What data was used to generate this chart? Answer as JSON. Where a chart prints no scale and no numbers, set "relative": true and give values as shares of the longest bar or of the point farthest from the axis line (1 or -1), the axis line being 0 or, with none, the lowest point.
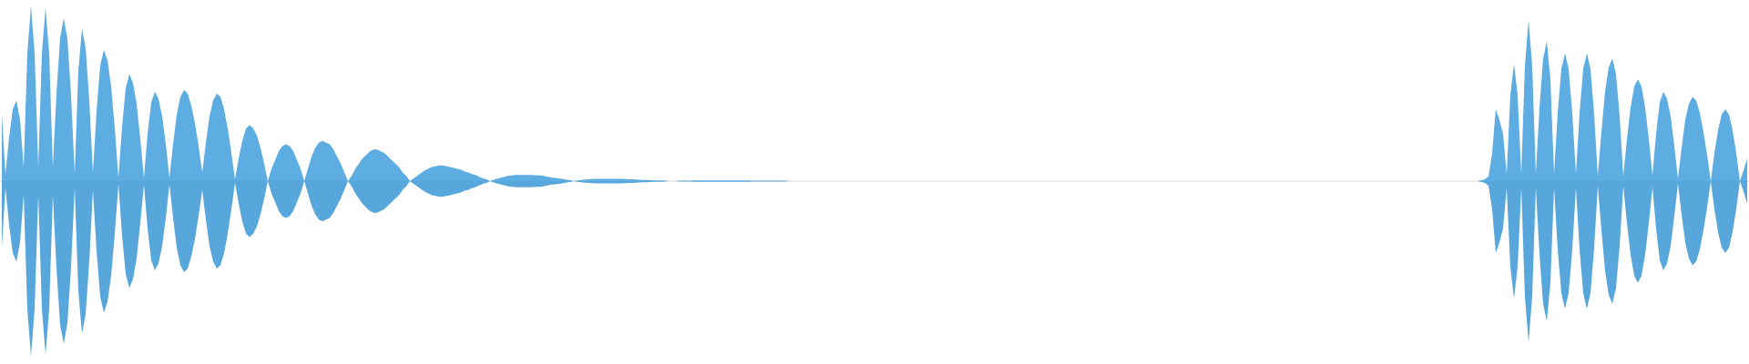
{
  "chart_data": {
    "type": "area",
    "relative": true,
    "categories": [
      null,
      null,
      null,
      null,
      null,
      null,
      null,
      null,
      null,
      null,
      null,
      null,
      null,
      null,
      null,
      null,
      null,
      null,
      null,
      null,
      null,
      null,
      null,
      null,
      null,
      null,
      null,
      null,
      null,
      null,
      null,
      null,
      null,
      null,
      null,
      null,
      null,
      null,
      null,
      null,
      null,
      null,
      null,
      null,
      null,
      null,
      null,
      null,
      null,
      null,
      null,
      null,
      null,
      null,
      null,
      null,
      null,
      null,
      null,
      null,
      null,
      null,
      null,
      null,
      null,
      null,
      null,
      null,
      null,
      null,
      null,
      null,
      null,
      null,
      null,
      null,
      null,
      null,
      null,
      null,
      null,
      null,
      null,
      null,
      null,
      null,
      null,
      null,
      null,
      null,
      null,
      null,
      null,
      null,
      null,
      null,
      null,
      null,
      null,
      null,
      null,
      null,
      null,
      null,
      null,
      null,
      null,
      null,
      null,
      null,
      null,
      null,
      null,
      null,
      null,
      null,
      null,
      null,
      null,
      null,
      null,
      null,
      null,
      null,
      null,
      null,
      null,
      null,
      null,
      null,
      null,
      null,
      null,
      null,
      null,
      null,
      null,
      null,
      null,
      null,
      null,
      null,
      null,
      null,
      null,
      null,
      null,
      null,
      null,
      null,
      null,
      null,
      null,
      null,
      null,
      null,
      null,
      null,
      null,
      null,
      null,
      null,
      null,
      null,
      null,
      null,
      null,
      null,
      null,
      null,
      null,
      null,
      null,
      null,
      null,
      null,
      null,
      null,
      null,
      null,
      null,
      null,
      null,
      null,
      null,
      null,
      null,
      null,
      null,
      null,
      null,
      null,
      null,
      null,
      null,
      null,
      null,
      null,
      null,
      null,
      null,
      null,
      null,
      null,
      null,
      null,
      null,
      null,
      null,
      null,
      null,
      null,
      null,
      null,
      null,
      null,
      null,
      null,
      null,
      null,
      null,
      null,
      null,
      null,
      null,
      null,
      null,
      null,
      null,
      null,
      null,
      null,
      null,
      null,
      null,
      null,
      null,
      null,
      null,
      null,
      null,
      null,
      null,
      null,
      null,
      null,
      null,
      null,
      null,
      null,
      null,
      null,
      null,
      null,
      null,
      null,
      null,
      null,
      null,
      null,
      null,
      null,
      null,
      null,
      null,
      null,
      null,
      null,
      null,
      null,
      null,
      null,
      null,
      null,
      null,
      null,
      null,
      null,
      null,
      null,
      null,
      null,
      null,
      null,
      null,
      null,
      null,
      null,
      null,
      null,
      null,
      null,
      null,
      null,
      null,
      null,
      null,
      null,
      null,
      null,
      null,
      null,
      null,
      null,
      null,
      null,
      null,
      null,
      null,
      null,
      null,
      null,
      null,
      null,
      null,
      null,
      null,
      null,
      null,
      null,
      null,
      null,
      null,
      null,
      null,
      null,
      null,
      null,
      null,
      null,
      null,
      null,
      null,
      null,
      null,
      null,
      null,
      null,
      null,
      null,
      null,
      null,
      null,
      null,
      null,
      null,
      null,
      null,
      null,
      null,
      null,
      null,
      null,
      null,
      null,
      null,
      null,
      null,
      null,
      null,
      null,
      null,
      null,
      null,
      null,
      null,
      null,
      null,
      null,
      null,
      null,
      null,
      null,
      null,
      null,
      null,
      null,
      null,
      null,
      null,
      null,
      null,
      null,
      null,
      null,
      null,
      null,
      null,
      null,
      null,
      null,
      null,
      null,
      null,
      null,
      null,
      null,
      null,
      null,
      null,
      null,
      null,
      null,
      null,
      null,
      null,
      null,
      null,
      null,
      null,
      null,
      null,
      null,
      null,
      null,
      null,
      null,
      null,
      null,
      null,
      null,
      null,
      null,
      null,
      null,
      null,
      null,
      null,
      null,
      null,
      null,
      null,
      null,
      null,
      null,
      null,
      null,
      null,
      null,
      null,
      null,
      null,
      null,
      null,
      null,
      null,
      null,
      null,
      null,
      null,
      null,
      null,
      null,
      null,
      null,
      null,
      null,
      null,
      null,
      null,
      null,
      null,
      null,
      null,
      null,
      null,
      null,
      null,
      null,
      null,
      null,
      null,
      null,
      null,
      null,
      null,
      null,
      null,
      null,
      null
    ],
    "series": [
      {
        "color": "#5eade2",
        "values": [
          0.38,
          0.04,
          0.25,
          0.41,
          0.46,
          0.35,
          0.08,
          0.73,
          1,
          0.73,
          0.08,
          0.73,
          0.99,
          0.73,
          0.08,
          0.5,
          0.82,
          0.93,
          0.81,
          0.49,
          0.04,
          0.63,
          0.87,
          0.76,
          0.46,
          0.05,
          0.4,
          0.66,
          0.75,
          0.69,
          0.54,
          0.3,
          0.02,
          0.31,
          0.53,
          0.61,
          0.56,
          0.44,
          0.24,
          0.02,
          0.27,
          0.45,
          0.51,
          0.47,
          0.37,
          0.21,
          0.02,
          0.21,
          0.38,
          0.48,
          0.52,
          0.5,
          0.43,
          0.33,
          0.2,
          0.05,
          0.22,
          0.37,
          0.46,
          0.5,
          0.48,
          0.41,
          0.3,
          0.16,
          0.01,
          0.13,
          0.23,
          0.3,
          0.32,
          0.3,
          0.26,
          0.19,
          0.1,
          0,
          0.07,
          0.12,
          0.17,
          0.2,
          0.21,
          0.2,
          0.17,
          0.12,
          0.07,
          0,
          0.07,
          0.14,
          0.19,
          0.22,
          0.23,
          0.22,
          0.21,
          0.18,
          0.14,
          0.1,
          0.05,
          0,
          0.03,
          0.07,
          0.1,
          0.13,
          0.15,
          0.17,
          0.18,
          0.18,
          0.17,
          0.16,
          0.14,
          0.12,
          0.1,
          0.08,
          0.05,
          0.03,
          0,
          0.015,
          0.03,
          0.045,
          0.06,
          0.07,
          0.08,
          0.085,
          0.09,
          0.09,
          0.085,
          0.08,
          0.075,
          0.07,
          0.065,
          0.055,
          0.05,
          0.04,
          0.035,
          0.025,
          0.015,
          0.01,
          0,
          0.008,
          0.014,
          0.02,
          0.025,
          0.03,
          0.033,
          0.035,
          0.035,
          0.035,
          0.035,
          0.035,
          0.034,
          0.033,
          0.032,
          0.028,
          0.024,
          0.02,
          0.018,
          0.015,
          0.012,
          0.008,
          0.005,
          0,
          0.004,
          0.006,
          0.009,
          0.011,
          0.012,
          0.013,
          0.013,
          0.013,
          0.013,
          0.013,
          0.013,
          0.013,
          0.013,
          0.012,
          0.011,
          0.01,
          0.009,
          0.008,
          0.007,
          0.006,
          0.005,
          0.004,
          0.004,
          0.004,
          0.003,
          0,
          0,
          0,
          0.003,
          0.003,
          0.003,
          0.003,
          0.004,
          0.004,
          0.004,
          0.004,
          0.004,
          0.004,
          0.004,
          0.004,
          0.004,
          0.004,
          0.004,
          0.004,
          0.004,
          0.004,
          0.004,
          0.004,
          0.003,
          0.003,
          0.003,
          0.003,
          0.003,
          0.003,
          0.003,
          0.003,
          0.003,
          0.003,
          0,
          0,
          0,
          0,
          0,
          0,
          0,
          0,
          0,
          0,
          0,
          0,
          0,
          0,
          0,
          0,
          0,
          0,
          0,
          0,
          0,
          0,
          0,
          0,
          0,
          0,
          0,
          0,
          0,
          0,
          0,
          0,
          0,
          0,
          0,
          0,
          0,
          0,
          0,
          0,
          0,
          0,
          0,
          0,
          0,
          0,
          0,
          0,
          0,
          0,
          0,
          0,
          0,
          0,
          0,
          0,
          0,
          0,
          0,
          0,
          0,
          0,
          0,
          0,
          0,
          0,
          0,
          0,
          0,
          0,
          0,
          0,
          0,
          0,
          0,
          0,
          0,
          0,
          0,
          0,
          0,
          0,
          0,
          0,
          0,
          0,
          0,
          0,
          0,
          0,
          0,
          0,
          0,
          0,
          0,
          0,
          0,
          0,
          0,
          0,
          0,
          0,
          0,
          0,
          0,
          0,
          0,
          0,
          0,
          0,
          0,
          0,
          0,
          0,
          0,
          0,
          0,
          0,
          0,
          0,
          0,
          0,
          0,
          0,
          0,
          0,
          0,
          0,
          0,
          0,
          0,
          0,
          0,
          0,
          0,
          0,
          0,
          0,
          0,
          0,
          0,
          0,
          0,
          0,
          0,
          0,
          0,
          0,
          0,
          0,
          0,
          0,
          0,
          0,
          0,
          0,
          0,
          0,
          0,
          0,
          0,
          0,
          0,
          0,
          0,
          0,
          0,
          0,
          0,
          0,
          0,
          0,
          0,
          0,
          0,
          0,
          0,
          0,
          0,
          0,
          0,
          0,
          0,
          0,
          0,
          0,
          0,
          0,
          0,
          0,
          0.005,
          0.01,
          0.026,
          0.16,
          0.41,
          0.35,
          0.27,
          0.04,
          0.49,
          0.67,
          0.49,
          0.04,
          0.66,
          0.92,
          0.66,
          0.04,
          0.42,
          0.7,
          0.8,
          0.58,
          0.04,
          0.39,
          0.64,
          0.73,
          0.64,
          0.39,
          0.04,
          0.39,
          0.64,
          0.73,
          0.64,
          0.38,
          0.03,
          0.28,
          0.51,
          0.65,
          0.7,
          0.61,
          0.37,
          0.03,
          0.24,
          0.42,
          0.54,
          0.58,
          0.54,
          0.42,
          0.24,
          0.035,
          0.27,
          0.45,
          0.51,
          0.47,
          0.37,
          0.2,
          0.015,
          0.19,
          0.35,
          0.44,
          0.48,
          0.46,
          0.39,
          0.28,
          0.15,
          0,
          0.16,
          0.29,
          0.38,
          0.41,
          0.38,
          0.29,
          0.16,
          0,
          0.06,
          0.13
        ]
      },
      {
        "color": "#58a7dc",
        "values": [
          -0.38,
          -0.04,
          -0.25,
          -0.41,
          -0.46,
          -0.35,
          -0.08,
          -0.73,
          -1,
          -0.73,
          -0.08,
          -0.73,
          -0.99,
          -0.73,
          -0.08,
          -0.5,
          -0.82,
          -0.93,
          -0.81,
          -0.49,
          -0.04,
          -0.63,
          -0.87,
          -0.76,
          -0.46,
          -0.05,
          -0.4,
          -0.66,
          -0.75,
          -0.69,
          -0.54,
          -0.3,
          -0.02,
          -0.31,
          -0.53,
          -0.61,
          -0.56,
          -0.44,
          -0.24,
          -0.02,
          -0.27,
          -0.45,
          -0.51,
          -0.47,
          -0.37,
          -0.21,
          -0.02,
          -0.21,
          -0.38,
          -0.48,
          -0.52,
          -0.5,
          -0.43,
          -0.33,
          -0.2,
          -0.05,
          -0.22,
          -0.37,
          -0.46,
          -0.5,
          -0.48,
          -0.41,
          -0.3,
          -0.16,
          -0.01,
          -0.13,
          -0.23,
          -0.3,
          -0.32,
          -0.3,
          -0.26,
          -0.19,
          -0.1,
          0,
          -0.07,
          -0.12,
          -0.17,
          -0.2,
          -0.21,
          -0.2,
          -0.17,
          -0.12,
          -0.07,
          0,
          -0.07,
          -0.14,
          -0.19,
          -0.22,
          -0.23,
          -0.22,
          -0.21,
          -0.18,
          -0.14,
          -0.1,
          -0.05,
          0,
          -0.03,
          -0.07,
          -0.1,
          -0.13,
          -0.15,
          -0.17,
          -0.18,
          -0.18,
          -0.17,
          -0.16,
          -0.14,
          -0.12,
          -0.1,
          -0.08,
          -0.05,
          -0.03,
          0,
          -0.015,
          -0.03,
          -0.045,
          -0.06,
          -0.07,
          -0.08,
          -0.085,
          -0.09,
          -0.09,
          -0.085,
          -0.08,
          -0.075,
          -0.07,
          -0.065,
          -0.055,
          -0.05,
          -0.04,
          -0.035,
          -0.025,
          -0.015,
          -0.01,
          0,
          -0.008,
          -0.014,
          -0.02,
          -0.025,
          -0.03,
          -0.033,
          -0.035,
          -0.035,
          -0.035,
          -0.035,
          -0.035,
          -0.034,
          -0.033,
          -0.032,
          -0.028,
          -0.024,
          -0.02,
          -0.018,
          -0.015,
          -0.012,
          -0.008,
          -0.005,
          0,
          -0.004,
          -0.006,
          -0.009,
          -0.011,
          -0.012,
          -0.013,
          -0.013,
          -0.013,
          -0.013,
          -0.013,
          -0.013,
          -0.013,
          -0.013,
          -0.012,
          -0.011,
          -0.01,
          -0.009,
          -0.008,
          -0.007,
          -0.006,
          -0.005,
          -0.004,
          -0.004,
          -0.004,
          -0.003,
          0,
          0,
          0,
          -0.003,
          -0.003,
          -0.003,
          -0.003,
          -0.004,
          -0.004,
          -0.004,
          -0.004,
          -0.004,
          -0.004,
          -0.004,
          -0.004,
          -0.004,
          -0.004,
          -0.004,
          -0.004,
          -0.004,
          -0.004,
          -0.004,
          -0.004,
          -0.003,
          -0.003,
          -0.003,
          -0.003,
          -0.003,
          -0.003,
          -0.003,
          -0.003,
          -0.003,
          -0.003,
          0,
          0,
          0,
          0,
          0,
          0,
          0,
          0,
          0,
          0,
          0,
          0,
          0,
          0,
          0,
          0,
          0,
          0,
          0,
          0,
          0,
          0,
          0,
          0,
          0,
          0,
          0,
          0,
          0,
          0,
          0,
          0,
          0,
          0,
          0,
          0,
          0,
          0,
          0,
          0,
          0,
          0,
          0,
          0,
          0,
          0,
          0,
          0,
          0,
          0,
          0,
          0,
          0,
          0,
          0,
          0,
          0,
          0,
          0,
          0,
          0,
          0,
          0,
          0,
          0,
          0,
          0,
          0,
          0,
          0,
          0,
          0,
          0,
          0,
          0,
          0,
          0,
          0,
          0,
          0,
          0,
          0,
          0,
          0,
          0,
          0,
          0,
          0,
          0,
          0,
          0,
          0,
          0,
          0,
          0,
          0,
          0,
          0,
          0,
          0,
          0,
          0,
          0,
          0,
          0,
          0,
          0,
          0,
          0,
          0,
          0,
          0,
          0,
          0,
          0,
          0,
          0,
          0,
          0,
          0,
          0,
          0,
          0,
          0,
          0,
          0,
          0,
          0,
          0,
          0,
          0,
          0,
          0,
          0,
          0,
          0,
          0,
          0,
          0,
          0,
          0,
          0,
          0,
          0,
          0,
          0,
          0,
          0,
          0,
          0,
          0,
          0,
          0,
          0,
          0,
          0,
          0,
          0,
          0,
          0,
          0,
          0,
          0,
          0,
          0,
          0,
          0,
          0,
          0,
          0,
          0,
          0,
          0,
          0,
          0,
          0,
          0,
          0,
          0,
          0,
          0,
          0,
          0,
          0,
          0,
          0,
          0,
          0,
          0,
          0,
          -0.005,
          -0.01,
          -0.026,
          -0.16,
          -0.41,
          -0.35,
          -0.27,
          -0.04,
          -0.49,
          -0.67,
          -0.49,
          -0.04,
          -0.66,
          -0.92,
          -0.66,
          -0.04,
          -0.42,
          -0.7,
          -0.8,
          -0.58,
          -0.04,
          -0.39,
          -0.64,
          -0.73,
          -0.64,
          -0.39,
          -0.04,
          -0.39,
          -0.64,
          -0.73,
          -0.64,
          -0.38,
          -0.03,
          -0.28,
          -0.51,
          -0.65,
          -0.7,
          -0.61,
          -0.37,
          -0.03,
          -0.24,
          -0.42,
          -0.54,
          -0.58,
          -0.54,
          -0.42,
          -0.24,
          -0.035,
          -0.27,
          -0.45,
          -0.51,
          -0.47,
          -0.37,
          -0.2,
          -0.015,
          -0.19,
          -0.35,
          -0.44,
          -0.48,
          -0.46,
          -0.39,
          -0.28,
          -0.15,
          0,
          -0.16,
          -0.29,
          -0.38,
          -0.41,
          -0.38,
          -0.29,
          -0.16,
          0,
          -0.06,
          -0.13
        ]
      }
    ]
  }
}
